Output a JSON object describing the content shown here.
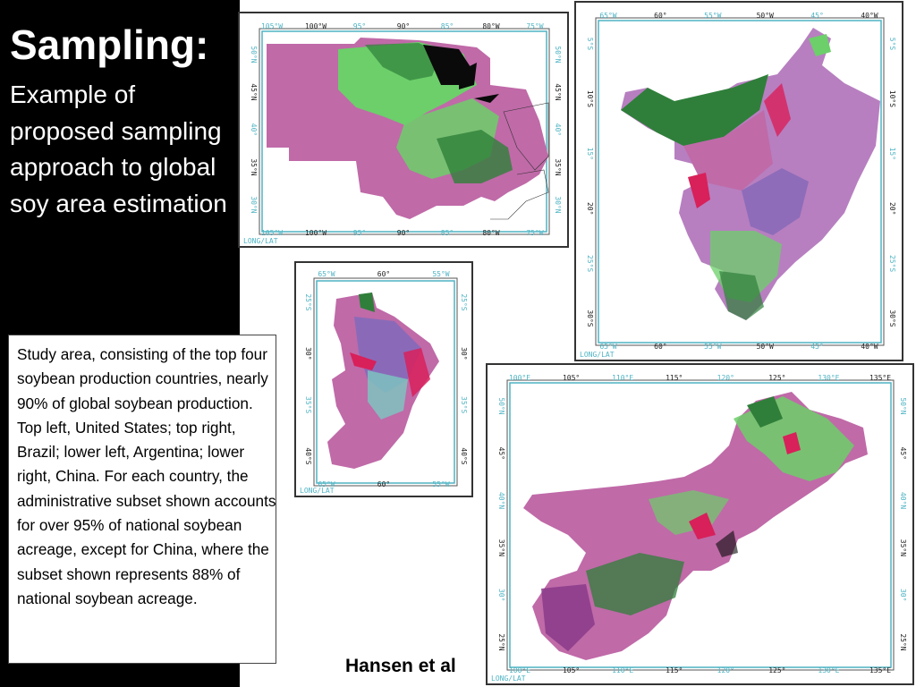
{
  "slide": {
    "title": "Sampling:",
    "subtitle": "Example of proposed sampling approach to global soy area estimation",
    "caption": "Study area, consisting of the top four soybean production countries, nearly 90% of global soybean production.  Top left, United States; top right, Brazil; lower left, Argentina; lower right, China. For each country, the administrative subset shown accounts for over 95% of national soybean acreage, except for China, where the subset shown represents 88% of national soybean acreage.",
    "credit": "Hansen et al"
  },
  "maps": {
    "usa": {
      "top_ticks": [
        "105°W",
        "100°W",
        "95°",
        "90°",
        "85°",
        "80°W",
        "75°W"
      ],
      "bottom_ticks": [
        "105°W",
        "100°W",
        "95°",
        "90°",
        "85°",
        "80°W",
        "75°W"
      ],
      "left_ticks": [
        "50°N",
        "45°N",
        "40°",
        "35°N",
        "30°N"
      ],
      "right_ticks": [
        "50°N",
        "45°N",
        "40°",
        "35°N",
        "30°N"
      ],
      "corner_label": "LONG/LAT"
    },
    "brazil": {
      "top_ticks": [
        "65°W",
        "60°",
        "55°W",
        "50°W",
        "45°",
        "40°W"
      ],
      "bottom_ticks": [
        "65°W",
        "60°",
        "55°W",
        "50°W",
        "45°",
        "40°W"
      ],
      "left_ticks": [
        "5°S",
        "10°S",
        "15°",
        "20°",
        "25°S",
        "30°S"
      ],
      "right_ticks": [
        "5°S",
        "10°S",
        "15°",
        "20°",
        "25°S",
        "30°S"
      ],
      "corner_label": "LONG/LAT"
    },
    "argentina": {
      "top_ticks": [
        "65°W",
        "60°",
        "55°W"
      ],
      "bottom_ticks": [
        "65°W",
        "60°",
        "55°W"
      ],
      "left_ticks": [
        "25°S",
        "30°",
        "35°S",
        "40°S"
      ],
      "right_ticks": [
        "25°S",
        "30°",
        "35°S",
        "40°S"
      ],
      "corner_label": "LONG/LAT"
    },
    "china": {
      "top_ticks": [
        "100°E",
        "105°",
        "110°E",
        "115°",
        "120°",
        "125°",
        "130°E",
        "135°E"
      ],
      "bottom_ticks": [
        "100°E",
        "105°",
        "110°E",
        "115°",
        "120°",
        "125°",
        "130°E",
        "135°E"
      ],
      "left_ticks": [
        "50°N",
        "45°",
        "40°N",
        "35°N",
        "30°",
        "25°N"
      ],
      "right_ticks": [
        "50°N",
        "45°",
        "40°N",
        "35°N",
        "30°",
        "25°N"
      ],
      "corner_label": "LONG/LAT"
    }
  },
  "colors": {
    "tick_cyan": "#4fb4c4",
    "tick_dark": "#222222",
    "land_magenta": "#c06aa8",
    "land_green": "#6ccf6a",
    "land_darkgreen": "#2f7f3a",
    "water_black": "#0a0a0a"
  }
}
